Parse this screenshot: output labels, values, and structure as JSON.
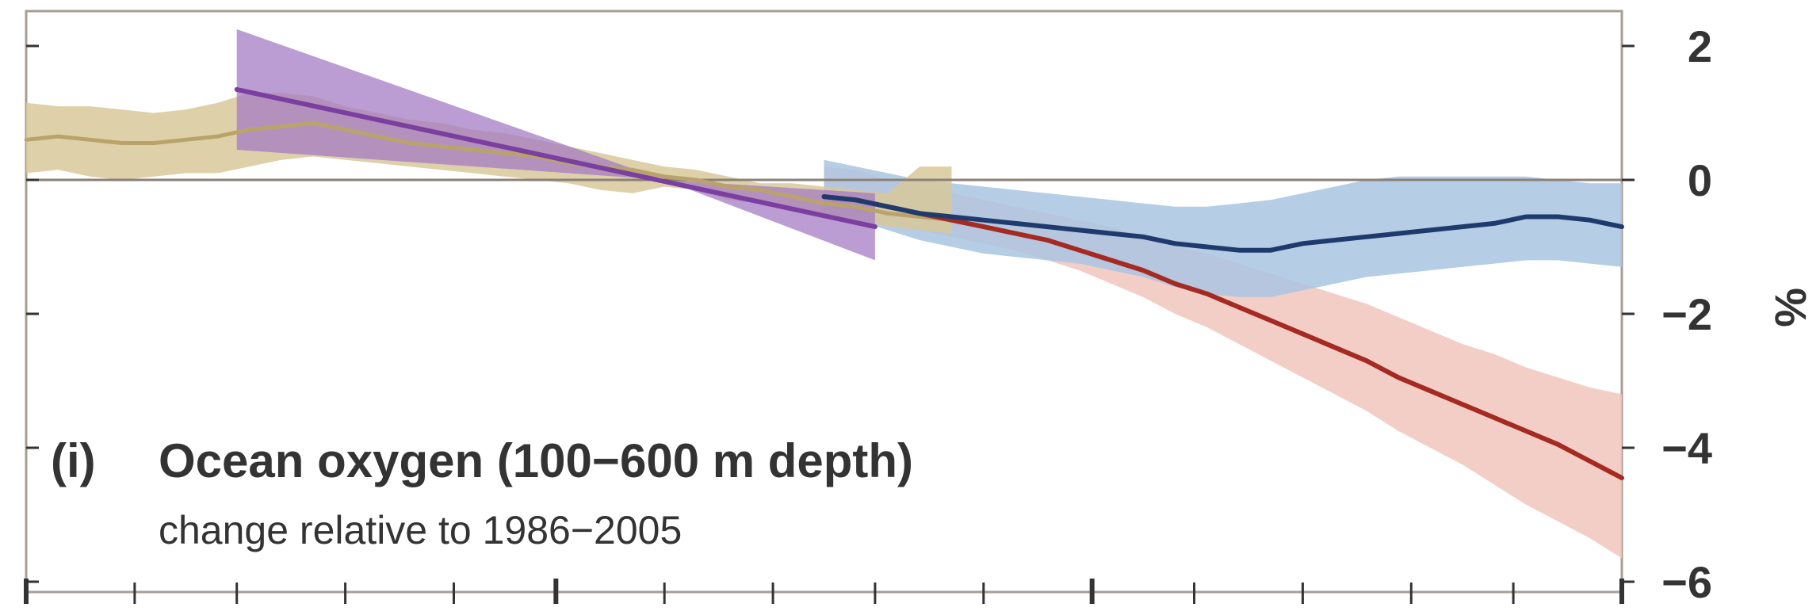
{
  "chart_data": {
    "type": "line",
    "panel_label": "(i)",
    "title": "Ocean oxygen (100−600 m depth)",
    "subtitle": "change relative to 1986−2005",
    "ylabel": "%",
    "ylim": [
      -6,
      2.5
    ],
    "xlim": [
      1850,
      2100
    ],
    "y_ticks": [
      2,
      0,
      -2,
      -4,
      -6
    ],
    "y_tick_labels": [
      "2",
      "0",
      "−2",
      "−4",
      "−6"
    ],
    "x_ticks": [
      1850,
      1867,
      1883,
      1900,
      1917,
      1933,
      1950,
      1967,
      1983,
      2000,
      2017,
      2033,
      2050,
      2067,
      2083,
      2100
    ],
    "x_major_ticks": [
      1850,
      1933,
      2017,
      2100
    ],
    "grid": false,
    "legend": "none",
    "colors": {
      "historical": "#b9a36a",
      "historical_band": "#d8c89a",
      "observed_trend": "#7b3fa0",
      "observed_trend_band": "#a57cc4",
      "low_scenario": "#1f3b6e",
      "low_scenario_band": "#a9c4e2",
      "high_scenario": "#a52a22",
      "high_scenario_band": "#f1c6bd",
      "zero_line": "#8a8178"
    },
    "series": [
      {
        "key": "historical",
        "x": [
          1850,
          1855,
          1860,
          1865,
          1870,
          1875,
          1880,
          1885,
          1890,
          1895,
          1900,
          1905,
          1910,
          1915,
          1920,
          1925,
          1930,
          1935,
          1940,
          1945,
          1950,
          1955,
          1960,
          1965,
          1970,
          1975,
          1980,
          1985,
          1990,
          1995
        ],
        "y": [
          0.6,
          0.65,
          0.6,
          0.55,
          0.55,
          0.6,
          0.65,
          0.75,
          0.8,
          0.85,
          0.75,
          0.65,
          0.55,
          0.5,
          0.45,
          0.4,
          0.35,
          0.25,
          0.2,
          0.15,
          0.05,
          0.0,
          -0.1,
          -0.15,
          -0.25,
          -0.35,
          -0.4,
          -0.5,
          -0.55,
          -0.6
        ],
        "lower": [
          0.1,
          0.15,
          0.05,
          0.0,
          0.05,
          0.1,
          0.1,
          0.2,
          0.3,
          0.35,
          0.3,
          0.25,
          0.2,
          0.15,
          0.1,
          0.05,
          0.0,
          -0.05,
          -0.15,
          -0.2,
          -0.1,
          -0.15,
          -0.3,
          -0.35,
          -0.45,
          -0.55,
          -0.6,
          -0.7,
          -0.75,
          -0.8
        ],
        "upper": [
          1.15,
          1.1,
          1.1,
          1.05,
          1.0,
          1.05,
          1.15,
          1.3,
          1.3,
          1.25,
          1.1,
          1.0,
          0.9,
          0.85,
          0.75,
          0.7,
          0.6,
          0.5,
          0.4,
          0.3,
          0.2,
          0.15,
          0.05,
          -0.05,
          -0.05,
          -0.1,
          -0.15,
          -0.2,
          0.2,
          0.2
        ]
      },
      {
        "key": "observed_trend",
        "x": [
          1883,
          1950,
          1950,
          1950,
          1983
        ],
        "y": [
          1.35,
          0.0,
          0.0,
          0.0,
          -0.7
        ],
        "lower": [
          0.45,
          0.0,
          0.0,
          0.0,
          -1.2
        ],
        "upper": [
          2.25,
          0.0,
          0.0,
          0.0,
          -0.2
        ]
      },
      {
        "key": "low_scenario",
        "x": [
          1975,
          1980,
          1985,
          1990,
          1995,
          2000,
          2005,
          2010,
          2015,
          2020,
          2025,
          2030,
          2035,
          2040,
          2045,
          2050,
          2055,
          2060,
          2065,
          2070,
          2075,
          2080,
          2085,
          2090,
          2095,
          2100
        ],
        "y": [
          -0.25,
          -0.3,
          -0.4,
          -0.5,
          -0.55,
          -0.6,
          -0.65,
          -0.7,
          -0.75,
          -0.8,
          -0.85,
          -0.95,
          -1.0,
          -1.05,
          -1.05,
          -0.95,
          -0.9,
          -0.85,
          -0.8,
          -0.75,
          -0.7,
          -0.65,
          -0.55,
          -0.55,
          -0.6,
          -0.7
        ],
        "lower": [
          -0.5,
          -0.6,
          -0.75,
          -0.9,
          -1.0,
          -1.1,
          -1.15,
          -1.2,
          -1.25,
          -1.35,
          -1.45,
          -1.6,
          -1.7,
          -1.75,
          -1.75,
          -1.65,
          -1.55,
          -1.45,
          -1.4,
          -1.35,
          -1.3,
          -1.25,
          -1.2,
          -1.2,
          -1.25,
          -1.3
        ],
        "upper": [
          0.3,
          0.2,
          0.1,
          0.0,
          -0.05,
          -0.1,
          -0.15,
          -0.2,
          -0.25,
          -0.3,
          -0.35,
          -0.4,
          -0.4,
          -0.35,
          -0.3,
          -0.2,
          -0.1,
          0.0,
          0.05,
          0.05,
          0.05,
          0.05,
          0.05,
          0.0,
          -0.05,
          -0.05
        ]
      },
      {
        "key": "high_scenario",
        "x": [
          1975,
          1980,
          1985,
          1990,
          1995,
          2000,
          2005,
          2010,
          2015,
          2020,
          2025,
          2030,
          2035,
          2040,
          2045,
          2050,
          2055,
          2060,
          2065,
          2070,
          2075,
          2080,
          2085,
          2090,
          2095,
          2100
        ],
        "y": [
          -0.25,
          -0.3,
          -0.4,
          -0.5,
          -0.6,
          -0.7,
          -0.8,
          -0.9,
          -1.05,
          -1.2,
          -1.35,
          -1.55,
          -1.7,
          -1.9,
          -2.1,
          -2.3,
          -2.5,
          -2.7,
          -2.95,
          -3.15,
          -3.35,
          -3.55,
          -3.75,
          -3.95,
          -4.2,
          -4.45
        ],
        "lower": [
          -0.5,
          -0.55,
          -0.65,
          -0.75,
          -0.85,
          -0.95,
          -1.05,
          -1.2,
          -1.35,
          -1.55,
          -1.75,
          -2.0,
          -2.2,
          -2.45,
          -2.7,
          -2.95,
          -3.2,
          -3.45,
          -3.75,
          -4.0,
          -4.25,
          -4.55,
          -4.85,
          -5.1,
          -5.35,
          -5.65
        ],
        "upper": [
          0.2,
          0.15,
          0.0,
          -0.1,
          -0.2,
          -0.3,
          -0.4,
          -0.5,
          -0.6,
          -0.7,
          -0.85,
          -1.0,
          -1.1,
          -1.25,
          -1.4,
          -1.55,
          -1.7,
          -1.85,
          -2.05,
          -2.25,
          -2.45,
          -2.6,
          -2.8,
          -2.95,
          -3.1,
          -3.2
        ]
      }
    ]
  }
}
